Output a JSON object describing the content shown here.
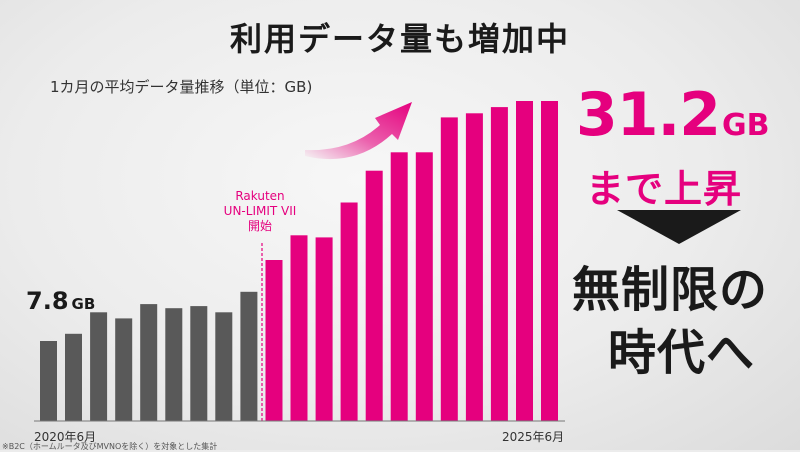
{
  "title": "利用データ量も増加中",
  "subtitle": "1カ月の平均データ量推移（単位：GB)",
  "first_value": {
    "number": "7.8",
    "unit": "GB"
  },
  "annotation": {
    "line1": "Rakuten",
    "line2": "UN-LIMIT VII",
    "line3": "開始"
  },
  "highlight": {
    "number": "31.2",
    "unit": "GB",
    "text": "まで上昇"
  },
  "message": {
    "line1": "無制限の",
    "line2": "時代へ"
  },
  "footnote": "※B2C（ホームルータ及びMVNOを除く）を対象とした集計",
  "colors": {
    "before": "#595959",
    "after": "#e5007e",
    "text": "#1a1a1a"
  },
  "chart_data": {
    "type": "bar",
    "title": "1カ月の平均データ量推移（単位：GB)",
    "x_start_label": "2020年6月",
    "x_end_label": "2025年6月",
    "values": [
      7.8,
      8.5,
      10.6,
      10.0,
      11.4,
      11.0,
      11.2,
      10.6,
      12.6,
      15.7,
      18.1,
      17.9,
      21.3,
      24.4,
      26.2,
      26.2,
      29.6,
      30.0,
      30.6,
      31.2,
      31.2
    ],
    "plan_launch_index": 9,
    "annotation": "Rakuten UN-LIMIT VII 開始",
    "ylim": [
      0,
      35
    ],
    "grid": false
  }
}
